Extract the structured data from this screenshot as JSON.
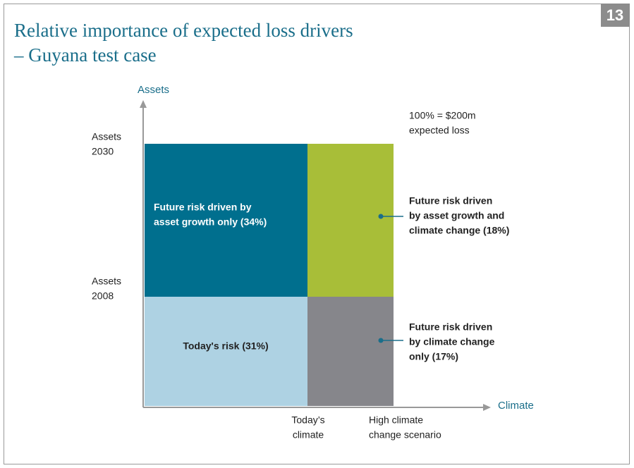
{
  "header": {
    "title_lines": [
      "Relative importance of expected loss drivers",
      "– Guyana test case"
    ],
    "page_number": "13"
  },
  "axes": {
    "y_label": "Assets",
    "x_label": "Climate",
    "y_ticks": [
      [
        "Assets",
        "2030"
      ],
      [
        "Assets",
        "2008"
      ]
    ],
    "x_ticks": [
      [
        "Today’s",
        "climate"
      ],
      [
        "High climate",
        "change scenario"
      ]
    ]
  },
  "note": [
    "100% = $200m",
    "expected loss"
  ],
  "boxes": [
    {
      "lines": [
        "Future risk driven by",
        "asset growth only (34%)"
      ]
    },
    {
      "lines": [
        "Today's risk (31%)"
      ]
    },
    {
      "lines": [
        "Future risk driven",
        "by asset growth and",
        "climate change (18%)"
      ]
    },
    {
      "lines": [
        "Future risk driven",
        "by climate change",
        "only (17%)"
      ]
    }
  ]
}
